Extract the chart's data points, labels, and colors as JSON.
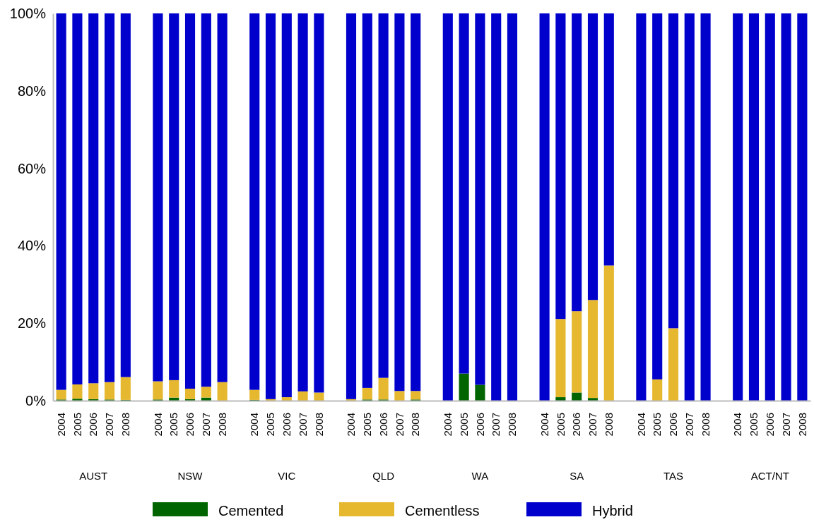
{
  "chart_data": {
    "type": "bar",
    "stacked": true,
    "categories": [
      "2004",
      "2005",
      "2006",
      "2007",
      "2008",
      null,
      "2004",
      "2005",
      "2006",
      "2007",
      "2008",
      null,
      "2004",
      "2005",
      "2006",
      "2007",
      "2008",
      null,
      "2004",
      "2005",
      "2006",
      "2007",
      "2008",
      null,
      "2004",
      "2005",
      "2006",
      "2007",
      "2008",
      null,
      "2004",
      "2005",
      "2006",
      "2007",
      "2008",
      null,
      "2004",
      "2005",
      "2006",
      "2007",
      "2008",
      null,
      "2004",
      "2005",
      "2006",
      "2007",
      "2008"
    ],
    "series": [
      {
        "name": "Cemented",
        "color": "#006400",
        "values": [
          0.3,
          0.5,
          0.4,
          0.3,
          0.2,
          null,
          0.3,
          0.8,
          0.4,
          0.8,
          0,
          null,
          0.2,
          0,
          0,
          0,
          0,
          null,
          0,
          0.3,
          0.3,
          0,
          0.3,
          null,
          0,
          7.0,
          4.1,
          0,
          0,
          null,
          0,
          0.9,
          2.1,
          0.7,
          0,
          null,
          0,
          0,
          0,
          0,
          0,
          null,
          0,
          0,
          0,
          0,
          0
        ]
      },
      {
        "name": "Cementless",
        "color": "#e6b830",
        "values": [
          2.5,
          3.7,
          4.1,
          4.5,
          5.9,
          null,
          4.7,
          4.5,
          2.7,
          2.8,
          4.8,
          null,
          2.6,
          0.4,
          0.9,
          2.4,
          2.1,
          null,
          0.4,
          3.0,
          5.6,
          2.5,
          2.2,
          null,
          0,
          0,
          0,
          0,
          0,
          null,
          0,
          20.2,
          21.0,
          25.3,
          34.9,
          null,
          0,
          5.5,
          18.7,
          0,
          0,
          null,
          0,
          0,
          0,
          0,
          0
        ]
      },
      {
        "name": "Hybrid",
        "color": "#0000cc",
        "values": [
          97.2,
          95.8,
          95.5,
          95.2,
          93.9,
          null,
          95.0,
          94.7,
          96.9,
          96.4,
          95.2,
          null,
          97.2,
          99.6,
          99.1,
          97.6,
          97.9,
          null,
          99.6,
          96.7,
          94.1,
          97.5,
          97.5,
          null,
          100,
          93.0,
          95.9,
          100,
          100,
          null,
          100,
          78.9,
          76.9,
          74.0,
          65.1,
          null,
          100,
          94.5,
          81.3,
          100,
          100,
          null,
          100,
          100,
          100,
          100,
          100
        ]
      }
    ],
    "ylim": [
      0,
      100
    ],
    "yticks": [
      {
        "value": 0,
        "label": "0%"
      },
      {
        "value": 20,
        "label": "20%"
      },
      {
        "value": 40,
        "label": "40%"
      },
      {
        "value": 60,
        "label": "60%"
      },
      {
        "value": 80,
        "label": "80%"
      },
      {
        "value": 100,
        "label": "100%"
      }
    ],
    "annotations": [
      "AUST",
      "NSW",
      "VIC",
      "QLD",
      "WA",
      "SA",
      "TAS",
      "ACT/NT"
    ],
    "legend": "bottom"
  }
}
